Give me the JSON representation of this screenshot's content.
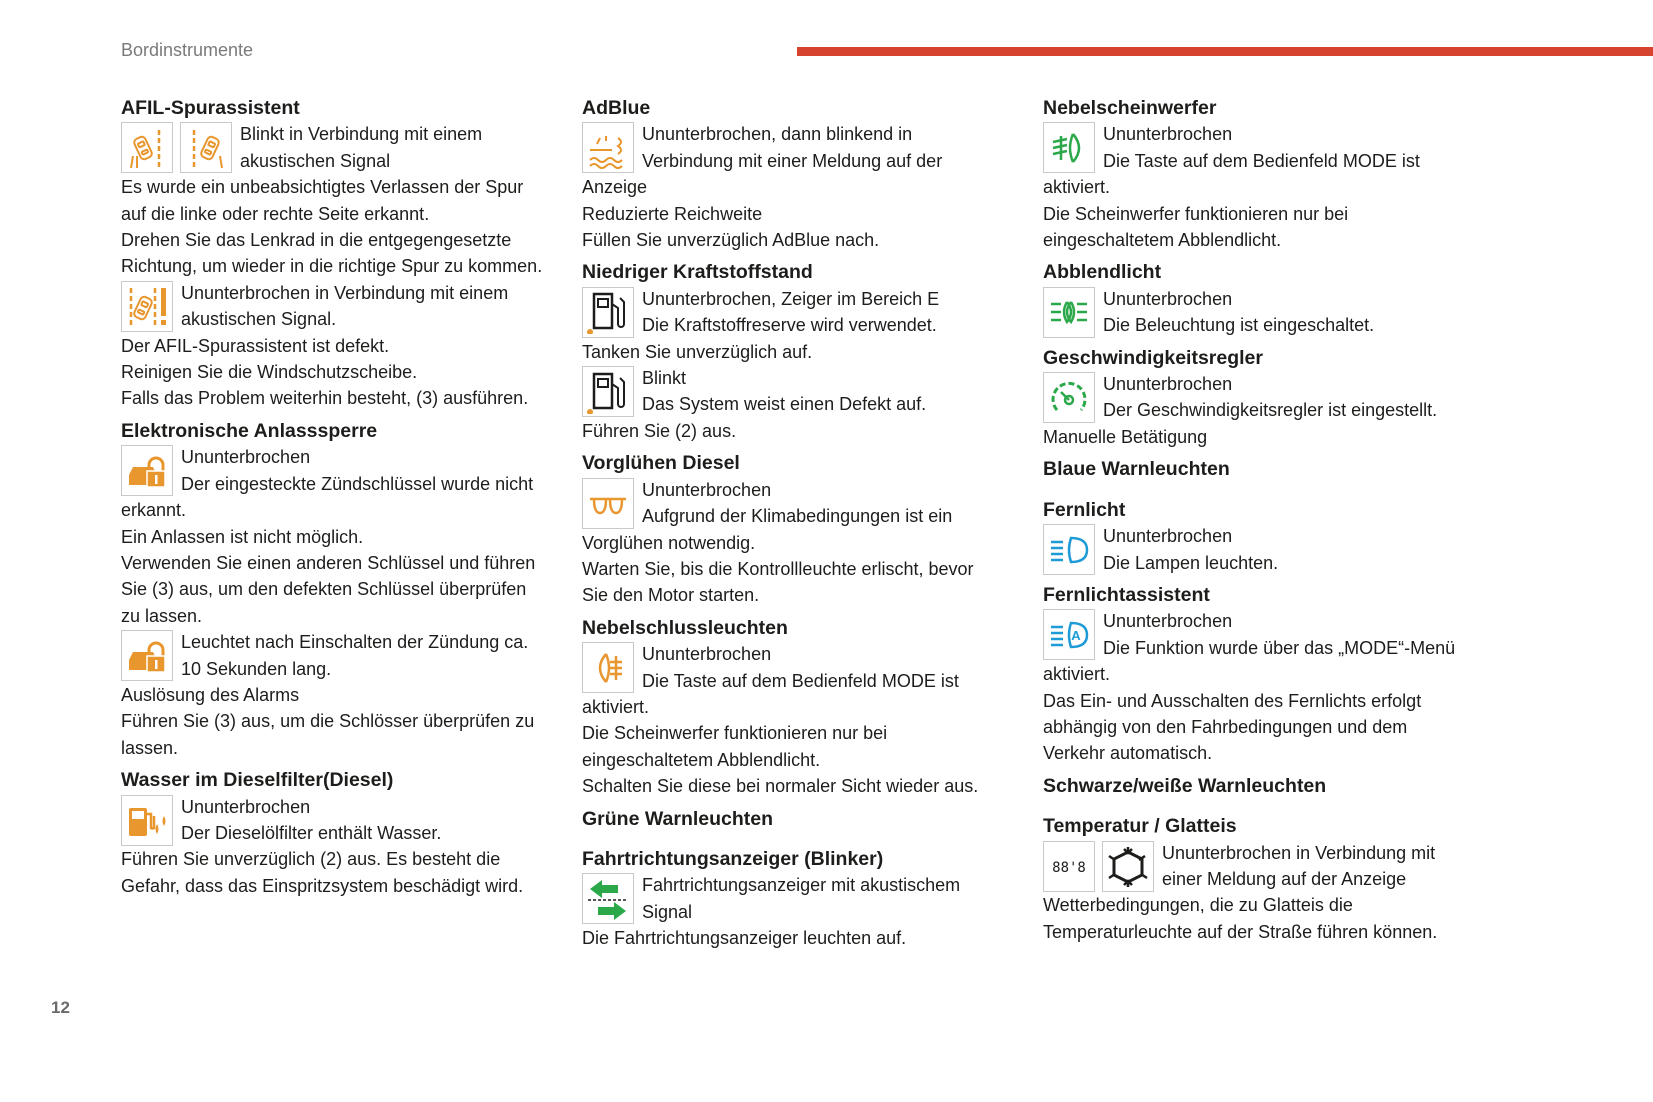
{
  "header": {
    "section_title": "Bordinstrumente",
    "accent_color": "#d6432f"
  },
  "page_number": "12",
  "colors": {
    "orange": "#e8962e",
    "green": "#2ba84a",
    "blue": "#1e9bd7",
    "black": "#1d1d1b"
  },
  "columns": [
    {
      "blocks": [
        {
          "type": "heading",
          "text": "AFIL-Spurassistent"
        },
        {
          "type": "icon",
          "icons": [
            "lane-departure-left-icon",
            "lane-departure-right-icon"
          ],
          "lines": [
            "Blinkt in Verbindung mit einem",
            "akustischen Signal"
          ]
        },
        {
          "type": "text",
          "lines": [
            "Es wurde ein unbeabsichtigtes Verlassen der Spur",
            "auf die linke oder rechte Seite erkannt.",
            "Drehen Sie das Lenkrad in die entgegengesetzte",
            "Richtung, um wieder in die richtige Spur zu kommen."
          ]
        },
        {
          "type": "icon",
          "icons": [
            "lane-assist-fault-icon"
          ],
          "lines": [
            "Ununterbrochen in Verbindung mit einem",
            "akustischen Signal."
          ]
        },
        {
          "type": "text",
          "lines": [
            "Der AFIL-Spurassistent ist defekt.",
            "Reinigen Sie die Windschutzscheibe.",
            "Falls das Problem weiterhin besteht, (3) ausführen."
          ]
        },
        {
          "type": "heading",
          "text": "Elektronische Anlasssperre"
        },
        {
          "type": "icon",
          "icons": [
            "immobiliser-icon"
          ],
          "lines": [
            "Ununterbrochen",
            "Der eingesteckte Zündschlüssel wurde nicht"
          ]
        },
        {
          "type": "text",
          "lines": [
            "erkannt.",
            "Ein Anlassen ist nicht möglich.",
            "Verwenden Sie einen anderen Schlüssel und führen",
            "Sie (3) aus, um den defekten Schlüssel überprüfen",
            "zu lassen."
          ]
        },
        {
          "type": "icon",
          "icons": [
            "immobiliser-icon"
          ],
          "lines": [
            "Leuchtet nach Einschalten der Zündung ca.",
            "10 Sekunden lang."
          ]
        },
        {
          "type": "text",
          "lines": [
            "Auslösung des Alarms",
            "Führen Sie (3) aus, um die Schlösser überprüfen zu",
            "lassen."
          ]
        },
        {
          "type": "heading",
          "text": "Wasser im Dieselfilter(Diesel)"
        },
        {
          "type": "icon",
          "icons": [
            "water-in-diesel-icon"
          ],
          "lines": [
            "Ununterbrochen",
            "Der Dieselölfilter enthält Wasser."
          ]
        },
        {
          "type": "text",
          "lines": [
            "Führen Sie unverzüglich (2) aus. Es besteht die",
            "Gefahr, dass das Einspritzsystem beschädigt wird."
          ]
        }
      ]
    },
    {
      "blocks": [
        {
          "type": "heading",
          "text": "AdBlue"
        },
        {
          "type": "icon",
          "icons": [
            "adblue-icon"
          ],
          "lines": [
            "Ununterbrochen, dann blinkend in",
            "Verbindung mit einer Meldung auf der"
          ]
        },
        {
          "type": "text",
          "lines": [
            "Anzeige",
            "Reduzierte Reichweite",
            "Füllen Sie unverzüglich AdBlue nach."
          ]
        },
        {
          "type": "heading",
          "text": "Niedriger Kraftstoffstand"
        },
        {
          "type": "icon",
          "icons": [
            "fuel-pump-icon"
          ],
          "lines": [
            "Ununterbrochen, Zeiger im Bereich E",
            "Die Kraftstoffreserve wird verwendet."
          ]
        },
        {
          "type": "text",
          "lines": [
            "Tanken Sie unverzüglich auf."
          ]
        },
        {
          "type": "icon",
          "icons": [
            "fuel-pump-icon"
          ],
          "lines": [
            "Blinkt",
            "Das System weist einen Defekt auf."
          ]
        },
        {
          "type": "text",
          "lines": [
            "Führen Sie (2) aus."
          ]
        },
        {
          "type": "heading",
          "text": "Vorglühen Diesel"
        },
        {
          "type": "icon",
          "icons": [
            "glow-plug-icon"
          ],
          "lines": [
            "Ununterbrochen",
            "Aufgrund der Klimabedingungen ist ein"
          ]
        },
        {
          "type": "text",
          "lines": [
            "Vorglühen notwendig.",
            "Warten Sie, bis die Kontrollleuchte erlischt, bevor",
            "Sie den Motor starten."
          ]
        },
        {
          "type": "heading",
          "text": "Nebelschlussleuchten"
        },
        {
          "type": "icon",
          "icons": [
            "rear-fog-light-icon"
          ],
          "lines": [
            "Ununterbrochen",
            "Die Taste auf dem Bedienfeld MODE ist"
          ]
        },
        {
          "type": "text",
          "lines": [
            "aktiviert.",
            "Die Scheinwerfer funktionieren nur bei",
            "eingeschaltetem Abblendlicht.",
            "Schalten Sie diese bei normaler Sicht wieder aus."
          ]
        },
        {
          "type": "group",
          "text": "Grüne Warnleuchten"
        },
        {
          "type": "heading",
          "text": "Fahrtrichtungsanzeiger (Blinker)",
          "nomargin": true
        },
        {
          "type": "icon",
          "icons": [
            "turn-indicators-icon"
          ],
          "lines": [
            "Fahrtrichtungsanzeiger mit akustischem",
            "Signal"
          ]
        },
        {
          "type": "text",
          "lines": [
            "Die Fahrtrichtungsanzeiger leuchten auf."
          ]
        }
      ]
    },
    {
      "blocks": [
        {
          "type": "heading",
          "text": "Nebelscheinwerfer"
        },
        {
          "type": "icon",
          "icons": [
            "front-fog-light-icon"
          ],
          "lines": [
            "Ununterbrochen",
            "Die Taste auf dem Bedienfeld MODE ist"
          ]
        },
        {
          "type": "text",
          "lines": [
            "aktiviert.",
            "Die Scheinwerfer funktionieren nur bei",
            "eingeschaltetem Abblendlicht."
          ]
        },
        {
          "type": "heading",
          "text": "Abblendlicht"
        },
        {
          "type": "icon",
          "icons": [
            "dipped-beam-icon"
          ],
          "lines": [
            "Ununterbrochen",
            "Die Beleuchtung ist eingeschaltet."
          ]
        },
        {
          "type": "heading",
          "text": "Geschwindigkeitsregler"
        },
        {
          "type": "icon",
          "icons": [
            "cruise-control-icon"
          ],
          "lines": [
            "Ununterbrochen",
            "Der Geschwindigkeitsregler ist eingestellt."
          ]
        },
        {
          "type": "text",
          "lines": [
            "Manuelle Betätigung"
          ]
        },
        {
          "type": "group",
          "text": "Blaue Warnleuchten"
        },
        {
          "type": "heading",
          "text": "Fernlicht",
          "nomargin": true
        },
        {
          "type": "icon",
          "icons": [
            "main-beam-icon"
          ],
          "lines": [
            "Ununterbrochen",
            "Die Lampen leuchten."
          ]
        },
        {
          "type": "heading",
          "text": "Fernlichtassistent"
        },
        {
          "type": "icon",
          "icons": [
            "auto-main-beam-icon"
          ],
          "lines": [
            "Ununterbrochen",
            "Die Funktion wurde über das „MODE“-Menü"
          ]
        },
        {
          "type": "text",
          "lines": [
            "aktiviert.",
            "Das Ein- und Ausschalten des Fernlichts erfolgt",
            "abhängig von den Fahrbedingungen und dem",
            "Verkehr automatisch."
          ]
        },
        {
          "type": "group",
          "text": "Schwarze/weiße Warnleuchten"
        },
        {
          "type": "heading",
          "text": "Temperatur / Glatteis",
          "nomargin": true
        },
        {
          "type": "icon",
          "icons": [
            "temperature-display-icon",
            "ice-warning-icon"
          ],
          "lines": [
            "Ununterbrochen in Verbindung mit",
            "einer Meldung auf der Anzeige"
          ]
        },
        {
          "type": "text",
          "lines": [
            "Wetterbedingungen, die zu Glatteis die",
            "Temperaturleuchte auf der Straße führen können."
          ]
        }
      ]
    }
  ]
}
